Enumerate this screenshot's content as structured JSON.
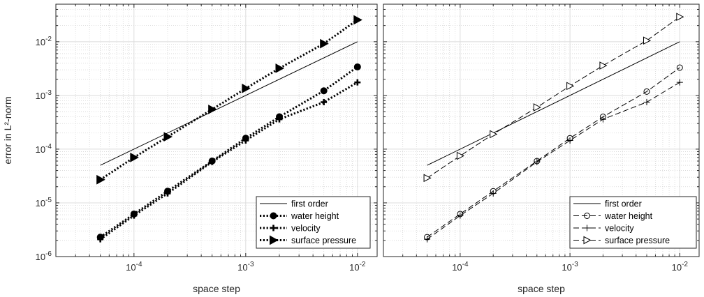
{
  "chart_data": [
    {
      "type": "line",
      "xscale": "log",
      "yscale": "log",
      "xlim": [
        2e-05,
        0.015
      ],
      "ylim": [
        1e-06,
        0.05
      ],
      "xlabel": "space step",
      "ylabel": "error in L²-norm",
      "grid": true,
      "legend_position": "bottom-right",
      "x_ticks": [
        {
          "value": 0.0001,
          "base": "10",
          "exp": "-4"
        },
        {
          "value": 0.001,
          "base": "10",
          "exp": "-3"
        },
        {
          "value": 0.01,
          "base": "10",
          "exp": "-2"
        }
      ],
      "y_ticks": [
        {
          "value": 1e-06,
          "base": "10",
          "exp": "-6"
        },
        {
          "value": 1e-05,
          "base": "10",
          "exp": "-5"
        },
        {
          "value": 0.0001,
          "base": "10",
          "exp": "-4"
        },
        {
          "value": 0.001,
          "base": "10",
          "exp": "-3"
        },
        {
          "value": 0.01,
          "base": "10",
          "exp": "-2"
        }
      ],
      "series": [
        {
          "name": "first order",
          "style": "solid",
          "marker": "none",
          "x": [
            5e-05,
            0.01
          ],
          "y": [
            5e-05,
            0.01
          ]
        },
        {
          "name": "water height",
          "style": "dotted-thick",
          "marker": "filled-circle",
          "x": [
            5e-05,
            0.0001,
            0.0002,
            0.0005,
            0.001,
            0.002,
            0.005,
            0.01
          ],
          "y": [
            2.3e-06,
            6.2e-06,
            1.65e-05,
            6e-05,
            0.00016,
            0.0004,
            0.00122,
            0.0034
          ]
        },
        {
          "name": "velocity",
          "style": "dotted-thick",
          "marker": "filled-plus",
          "x": [
            5e-05,
            0.0001,
            0.0002,
            0.0005,
            0.001,
            0.002,
            0.005,
            0.01
          ],
          "y": [
            2.1e-06,
            5.8e-06,
            1.5e-05,
            5.8e-05,
            0.000145,
            0.00036,
            0.00075,
            0.00175
          ]
        },
        {
          "name": "surface pressure",
          "style": "dotted-thick",
          "marker": "filled-triangle-right",
          "x": [
            5e-05,
            0.0001,
            0.0002,
            0.0005,
            0.001,
            0.002,
            0.005,
            0.01
          ],
          "y": [
            2.7e-05,
            7e-05,
            0.00017,
            0.00055,
            0.00135,
            0.0032,
            0.0092,
            0.0255
          ]
        }
      ]
    },
    {
      "type": "line",
      "xscale": "log",
      "yscale": "log",
      "xlim": [
        2e-05,
        0.015
      ],
      "ylim": [
        1e-06,
        0.05
      ],
      "xlabel": "space step",
      "ylabel": "",
      "grid": true,
      "legend_position": "bottom-right",
      "x_ticks": [
        {
          "value": 0.0001,
          "base": "10",
          "exp": "-4"
        },
        {
          "value": 0.001,
          "base": "10",
          "exp": "-3"
        },
        {
          "value": 0.01,
          "base": "10",
          "exp": "-2"
        }
      ],
      "series": [
        {
          "name": "first order",
          "style": "solid",
          "marker": "none",
          "x": [
            5e-05,
            0.01
          ],
          "y": [
            5e-05,
            0.01
          ]
        },
        {
          "name": "water height",
          "style": "dashed",
          "marker": "open-circle",
          "x": [
            5e-05,
            0.0001,
            0.0002,
            0.0005,
            0.001,
            0.002,
            0.005,
            0.01
          ],
          "y": [
            2.3e-06,
            6.2e-06,
            1.65e-05,
            6e-05,
            0.00016,
            0.0004,
            0.00118,
            0.0033
          ]
        },
        {
          "name": "velocity",
          "style": "dashed",
          "marker": "plus",
          "x": [
            5e-05,
            0.0001,
            0.0002,
            0.0005,
            0.001,
            0.002,
            0.005,
            0.01
          ],
          "y": [
            2.1e-06,
            5.8e-06,
            1.5e-05,
            5.8e-05,
            0.000145,
            0.00036,
            0.00075,
            0.00175
          ]
        },
        {
          "name": "surface pressure",
          "style": "dashed",
          "marker": "open-triangle-right",
          "x": [
            5e-05,
            0.0001,
            0.0002,
            0.0005,
            0.001,
            0.002,
            0.005,
            0.01
          ],
          "y": [
            2.9e-05,
            7.5e-05,
            0.00019,
            0.0006,
            0.0015,
            0.0036,
            0.0105,
            0.029
          ]
        }
      ]
    }
  ]
}
